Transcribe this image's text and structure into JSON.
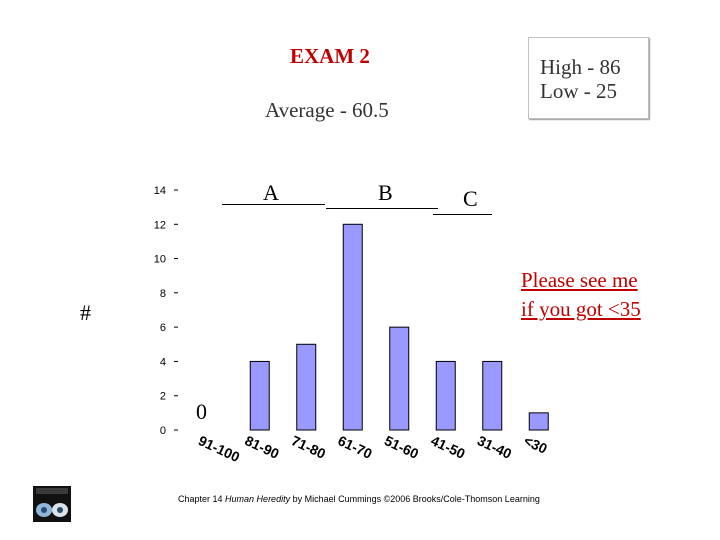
{
  "title": "EXAM 2",
  "average": "Average - 60.5",
  "high": "High - 86",
  "low": "Low - 25",
  "note": [
    "Please see me",
    "if you got <35"
  ],
  "y_axis_symbol": "#",
  "grades": {
    "a": "A",
    "b": "B",
    "c": "C"
  },
  "zero_label": "0",
  "footer": {
    "prefix": "Chapter 14",
    "book": "Human Heredity",
    "suffix": "by Michael Cummings ©2006 Brooks/Cole-Thomson Learning"
  },
  "colors": {
    "bar_fill": "#9999ff",
    "bar_stroke": "#000000",
    "title": "#c00000",
    "note": "#c00000"
  },
  "chart_data": {
    "type": "bar",
    "categories": [
      "91-100",
      "81-90",
      "71-80",
      "61-70",
      "51-60",
      "41-50",
      "31-40",
      "<30"
    ],
    "values": [
      0,
      4,
      5,
      12,
      6,
      4,
      4,
      1
    ],
    "yticks": [
      0,
      2,
      4,
      6,
      8,
      10,
      12,
      14
    ],
    "ylim": [
      0,
      14
    ],
    "xlabel": "",
    "ylabel": "#",
    "grid": false
  }
}
